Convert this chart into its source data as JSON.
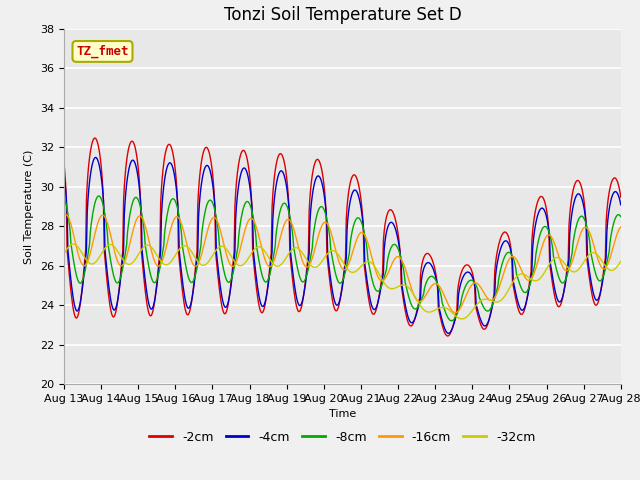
{
  "title": "Tonzi Soil Temperature Set D",
  "ylabel": "Soil Temperature (C)",
  "xlabel": "Time",
  "annotation": "TZ_fmet",
  "ylim": [
    20,
    38
  ],
  "xlim": [
    0,
    360
  ],
  "series_labels": [
    "-2cm",
    "-4cm",
    "-8cm",
    "-16cm",
    "-32cm"
  ],
  "series_colors": [
    "#dd0000",
    "#0000cc",
    "#00aa00",
    "#ff9900",
    "#cccc00"
  ],
  "plot_bg_color": "#e8e8e8",
  "fig_bg_color": "#f0f0f0",
  "n_points": 721,
  "hours": 360,
  "tick_days": [
    "Aug 13",
    "Aug 14",
    "Aug 15",
    "Aug 16",
    "Aug 17",
    "Aug 18",
    "Aug 19",
    "Aug 20",
    "Aug 21",
    "Aug 22",
    "Aug 23",
    "Aug 24",
    "Aug 25",
    "Aug 26",
    "Aug 27",
    "Aug 28"
  ],
  "title_fontsize": 12,
  "label_fontsize": 8,
  "legend_fontsize": 9
}
